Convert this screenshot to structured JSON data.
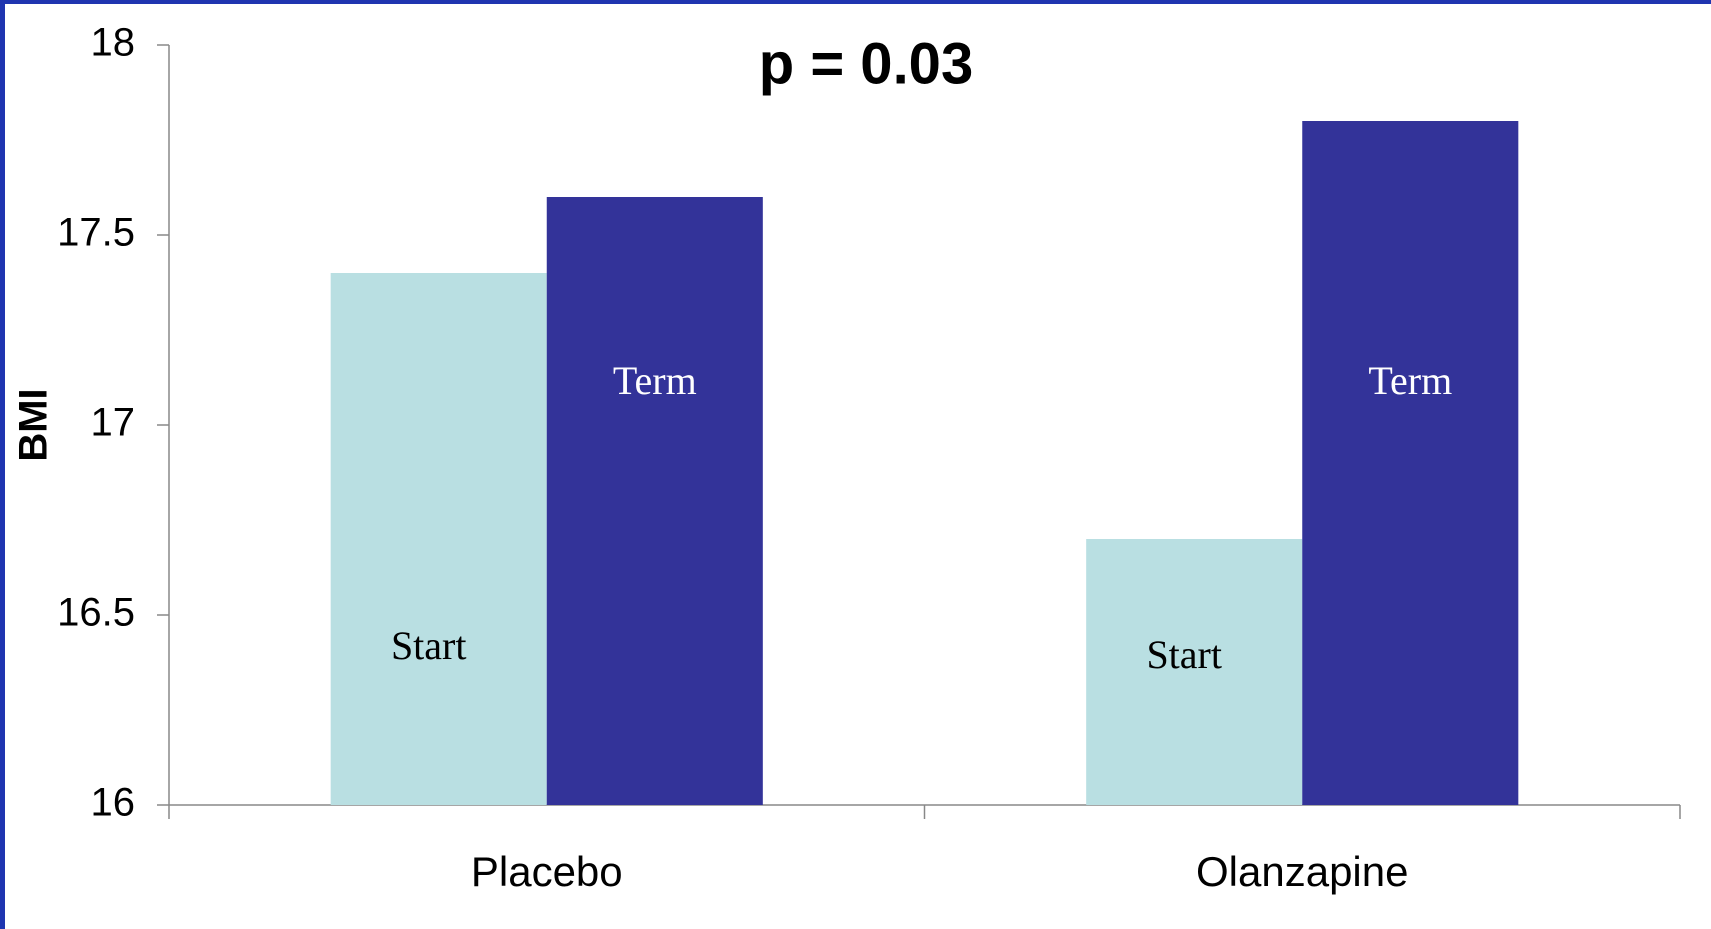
{
  "chart_data": {
    "type": "bar",
    "title": "p = 0.03",
    "y_label": "BMI",
    "categories": [
      "Placebo",
      "Olanzapine"
    ],
    "series": [
      {
        "name": "Start",
        "color": "#b9dfe2",
        "label_color": "#000000",
        "values": [
          17.4,
          16.7
        ]
      },
      {
        "name": "Term",
        "color": "#333399",
        "label_color": "#ffffff",
        "values": [
          17.6,
          17.8
        ]
      }
    ],
    "ylim": [
      16,
      18
    ],
    "yticks": [
      16,
      16.5,
      17,
      17.5,
      18
    ],
    "grid": false
  }
}
